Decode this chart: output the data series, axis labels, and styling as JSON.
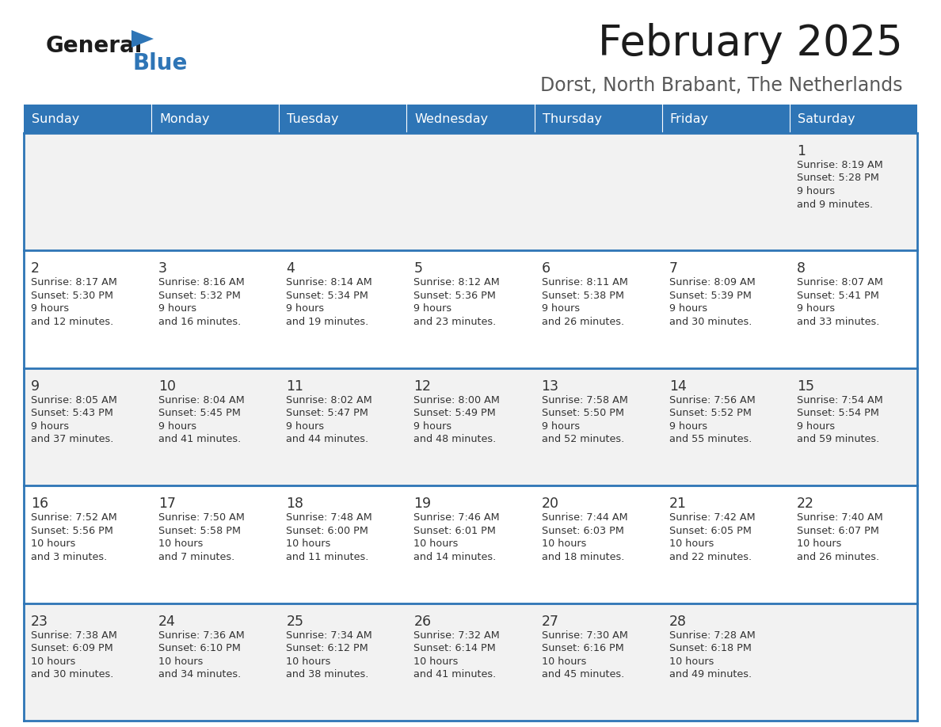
{
  "title": "February 2025",
  "subtitle": "Dorst, North Brabant, The Netherlands",
  "days_of_week": [
    "Sunday",
    "Monday",
    "Tuesday",
    "Wednesday",
    "Thursday",
    "Friday",
    "Saturday"
  ],
  "header_bg": "#2E75B6",
  "header_text": "#FFFFFF",
  "cell_bg_odd": "#F2F2F2",
  "cell_bg_even": "#FFFFFF",
  "border_color": "#2E75B6",
  "text_color": "#333333",
  "day_num_color": "#333333",
  "calendar": [
    [
      null,
      null,
      null,
      null,
      null,
      null,
      {
        "day": 1,
        "sunrise": "8:19 AM",
        "sunset": "5:28 PM",
        "daylight": "9 hours\nand 9 minutes."
      }
    ],
    [
      {
        "day": 2,
        "sunrise": "8:17 AM",
        "sunset": "5:30 PM",
        "daylight": "9 hours\nand 12 minutes."
      },
      {
        "day": 3,
        "sunrise": "8:16 AM",
        "sunset": "5:32 PM",
        "daylight": "9 hours\nand 16 minutes."
      },
      {
        "day": 4,
        "sunrise": "8:14 AM",
        "sunset": "5:34 PM",
        "daylight": "9 hours\nand 19 minutes."
      },
      {
        "day": 5,
        "sunrise": "8:12 AM",
        "sunset": "5:36 PM",
        "daylight": "9 hours\nand 23 minutes."
      },
      {
        "day": 6,
        "sunrise": "8:11 AM",
        "sunset": "5:38 PM",
        "daylight": "9 hours\nand 26 minutes."
      },
      {
        "day": 7,
        "sunrise": "8:09 AM",
        "sunset": "5:39 PM",
        "daylight": "9 hours\nand 30 minutes."
      },
      {
        "day": 8,
        "sunrise": "8:07 AM",
        "sunset": "5:41 PM",
        "daylight": "9 hours\nand 33 minutes."
      }
    ],
    [
      {
        "day": 9,
        "sunrise": "8:05 AM",
        "sunset": "5:43 PM",
        "daylight": "9 hours\nand 37 minutes."
      },
      {
        "day": 10,
        "sunrise": "8:04 AM",
        "sunset": "5:45 PM",
        "daylight": "9 hours\nand 41 minutes."
      },
      {
        "day": 11,
        "sunrise": "8:02 AM",
        "sunset": "5:47 PM",
        "daylight": "9 hours\nand 44 minutes."
      },
      {
        "day": 12,
        "sunrise": "8:00 AM",
        "sunset": "5:49 PM",
        "daylight": "9 hours\nand 48 minutes."
      },
      {
        "day": 13,
        "sunrise": "7:58 AM",
        "sunset": "5:50 PM",
        "daylight": "9 hours\nand 52 minutes."
      },
      {
        "day": 14,
        "sunrise": "7:56 AM",
        "sunset": "5:52 PM",
        "daylight": "9 hours\nand 55 minutes."
      },
      {
        "day": 15,
        "sunrise": "7:54 AM",
        "sunset": "5:54 PM",
        "daylight": "9 hours\nand 59 minutes."
      }
    ],
    [
      {
        "day": 16,
        "sunrise": "7:52 AM",
        "sunset": "5:56 PM",
        "daylight": "10 hours\nand 3 minutes."
      },
      {
        "day": 17,
        "sunrise": "7:50 AM",
        "sunset": "5:58 PM",
        "daylight": "10 hours\nand 7 minutes."
      },
      {
        "day": 18,
        "sunrise": "7:48 AM",
        "sunset": "6:00 PM",
        "daylight": "10 hours\nand 11 minutes."
      },
      {
        "day": 19,
        "sunrise": "7:46 AM",
        "sunset": "6:01 PM",
        "daylight": "10 hours\nand 14 minutes."
      },
      {
        "day": 20,
        "sunrise": "7:44 AM",
        "sunset": "6:03 PM",
        "daylight": "10 hours\nand 18 minutes."
      },
      {
        "day": 21,
        "sunrise": "7:42 AM",
        "sunset": "6:05 PM",
        "daylight": "10 hours\nand 22 minutes."
      },
      {
        "day": 22,
        "sunrise": "7:40 AM",
        "sunset": "6:07 PM",
        "daylight": "10 hours\nand 26 minutes."
      }
    ],
    [
      {
        "day": 23,
        "sunrise": "7:38 AM",
        "sunset": "6:09 PM",
        "daylight": "10 hours\nand 30 minutes."
      },
      {
        "day": 24,
        "sunrise": "7:36 AM",
        "sunset": "6:10 PM",
        "daylight": "10 hours\nand 34 minutes."
      },
      {
        "day": 25,
        "sunrise": "7:34 AM",
        "sunset": "6:12 PM",
        "daylight": "10 hours\nand 38 minutes."
      },
      {
        "day": 26,
        "sunrise": "7:32 AM",
        "sunset": "6:14 PM",
        "daylight": "10 hours\nand 41 minutes."
      },
      {
        "day": 27,
        "sunrise": "7:30 AM",
        "sunset": "6:16 PM",
        "daylight": "10 hours\nand 45 minutes."
      },
      {
        "day": 28,
        "sunrise": "7:28 AM",
        "sunset": "6:18 PM",
        "daylight": "10 hours\nand 49 minutes."
      },
      null
    ]
  ]
}
